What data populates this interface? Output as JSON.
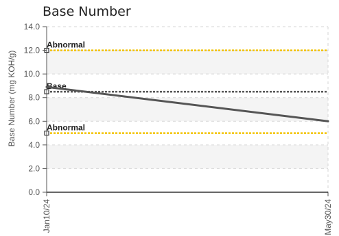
{
  "chart_data": {
    "type": "line",
    "title": "Base Number",
    "ylabel": "Base Number (mg KOH/g)",
    "xlabel": "",
    "ylim": [
      0,
      14
    ],
    "y_ticks": [
      "0.0",
      "2.0",
      "4.0",
      "6.0",
      "8.0",
      "10.0",
      "12.0",
      "14.0"
    ],
    "x_ticks": [
      "Jan10/24",
      "May30/24"
    ],
    "grid": true,
    "series": [
      {
        "x": [
          "Jan10/24",
          "May30/24"
        ],
        "values": [
          8.9,
          6.0
        ],
        "color": "#555555"
      }
    ],
    "reference_lines": [
      {
        "label": "Abnormal",
        "value": 12.0,
        "color": "#f2c200"
      },
      {
        "label": "Base",
        "value": 8.5,
        "color": "#555555"
      },
      {
        "label": "Abnormal",
        "value": 5.0,
        "color": "#f2c200"
      }
    ]
  }
}
